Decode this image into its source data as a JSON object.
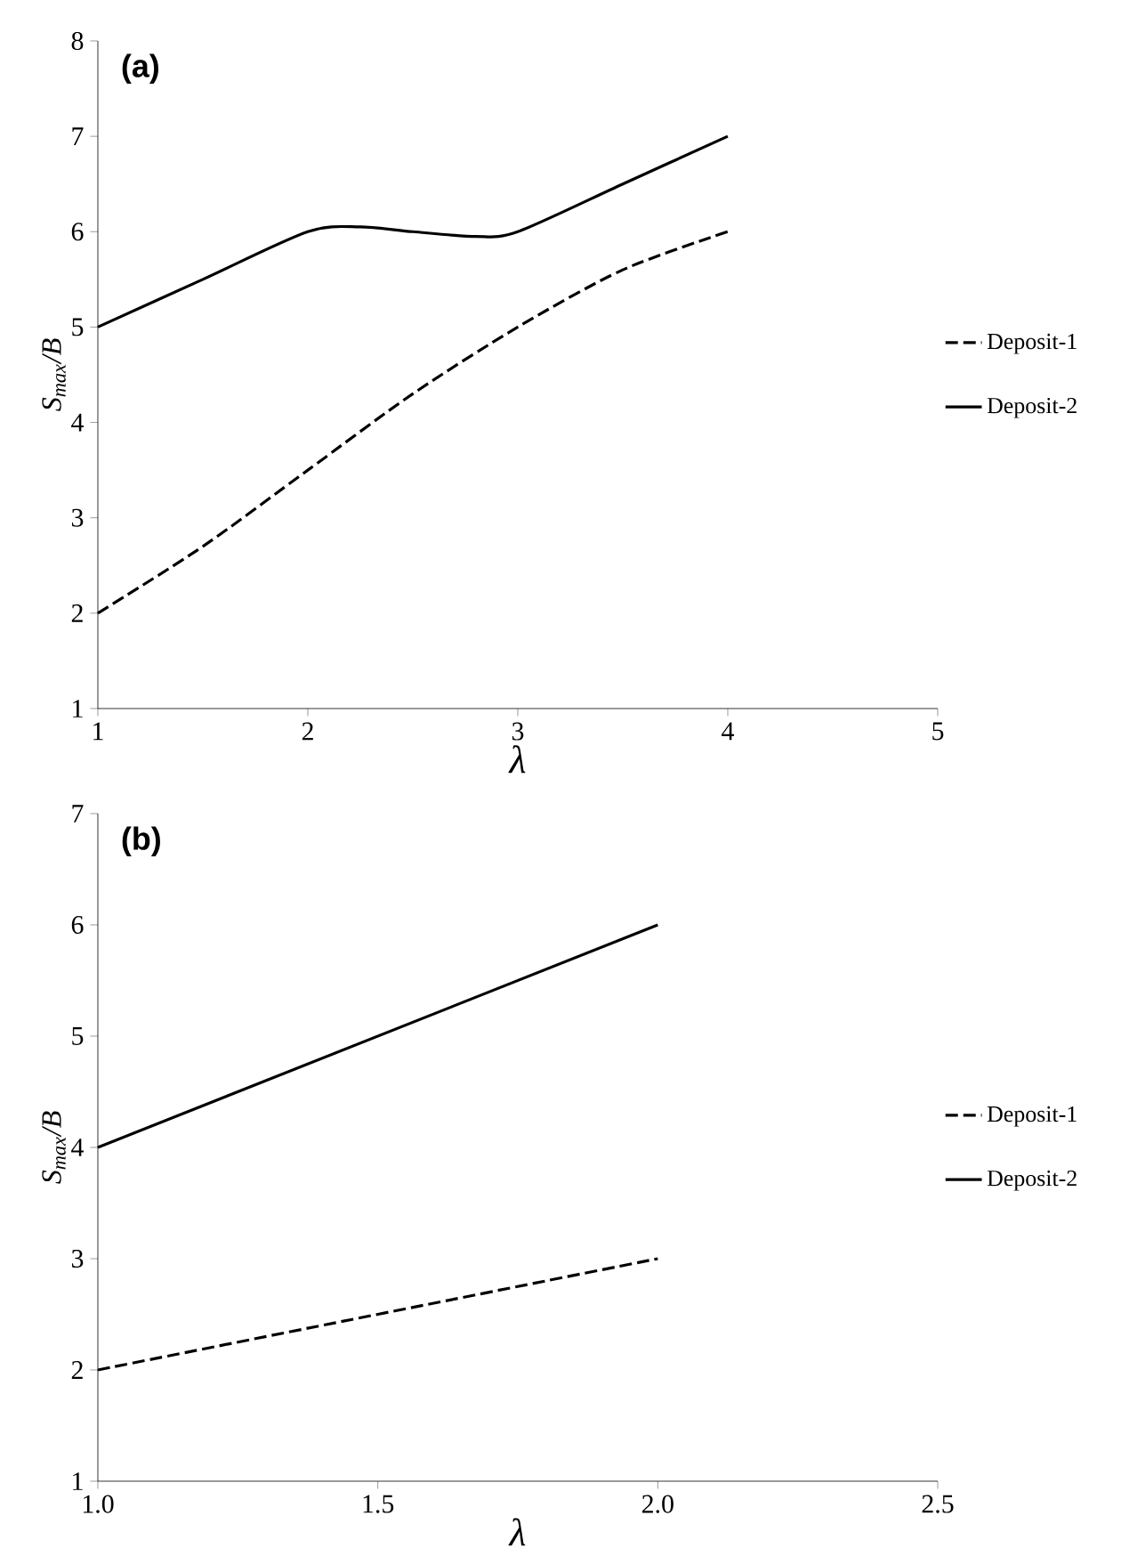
{
  "chart_data": [
    {
      "type": "line",
      "title": "(a)",
      "xlabel": "λ",
      "ylabel": "S$_{max}$/B",
      "xlim": [
        1,
        5
      ],
      "ylim": [
        1,
        8
      ],
      "xticks": [
        1,
        2,
        3,
        4,
        5
      ],
      "yticks": [
        1,
        2,
        3,
        4,
        5,
        6,
        7,
        8
      ],
      "legend": "right",
      "series": [
        {
          "name": "Deposit-1",
          "color": "#000000",
          "line_style": "dashed",
          "x": [
            1,
            1.5,
            2,
            2.5,
            3,
            3.5,
            4
          ],
          "values": [
            2,
            2.7,
            3.5,
            4.3,
            5,
            5.6,
            6
          ]
        },
        {
          "name": "Deposit-2",
          "color": "#000000",
          "line_style": "solid",
          "x": [
            1,
            1.5,
            2,
            2.25,
            2.5,
            2.8,
            3,
            3.5,
            4
          ],
          "values": [
            5,
            5.5,
            6,
            6.05,
            6,
            5.95,
            6,
            6.5,
            7
          ]
        }
      ]
    },
    {
      "type": "line",
      "title": "(b)",
      "xlabel": "λ",
      "ylabel": "S$_{max}$/B",
      "xlim": [
        1,
        2.5
      ],
      "ylim": [
        1,
        7
      ],
      "xticks": [
        {
          "value": 1,
          "label": "1.0"
        },
        1.5,
        {
          "value": 2,
          "label": "2.0"
        },
        2.5
      ],
      "yticks": [
        1,
        2,
        3,
        4,
        5,
        6,
        7
      ],
      "legend": "right",
      "series": [
        {
          "name": "Deposit-1",
          "color": "#000000",
          "line_style": "dashed",
          "x": [
            1,
            2
          ],
          "values": [
            2,
            3
          ]
        },
        {
          "name": "Deposit-2",
          "color": "#000000",
          "line_style": "solid",
          "x": [
            1,
            2
          ],
          "values": [
            4,
            6
          ]
        }
      ]
    }
  ]
}
